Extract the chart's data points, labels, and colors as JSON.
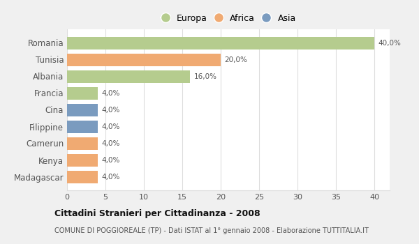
{
  "categories": [
    "Romania",
    "Tunisia",
    "Albania",
    "Francia",
    "Cina",
    "Filippine",
    "Camerun",
    "Kenya",
    "Madagascar"
  ],
  "values": [
    40.0,
    20.0,
    16.0,
    4.0,
    4.0,
    4.0,
    4.0,
    4.0,
    4.0
  ],
  "labels": [
    "40,0%",
    "20,0%",
    "16,0%",
    "4,0%",
    "4,0%",
    "4,0%",
    "4,0%",
    "4,0%",
    "4,0%"
  ],
  "continents": [
    "Europa",
    "Africa",
    "Europa",
    "Europa",
    "Asia",
    "Asia",
    "Africa",
    "Africa",
    "Africa"
  ],
  "colors": {
    "Europa": "#b5cc8e",
    "Africa": "#f0aa72",
    "Asia": "#7a9bbf"
  },
  "legend_labels": [
    "Europa",
    "Africa",
    "Asia"
  ],
  "legend_colors": [
    "#b5cc8e",
    "#f0aa72",
    "#7a9bbf"
  ],
  "xlim": [
    0,
    42
  ],
  "xticks": [
    0,
    5,
    10,
    15,
    20,
    25,
    30,
    35,
    40
  ],
  "title_bold": "Cittadini Stranieri per Cittadinanza - 2008",
  "subtitle": "COMUNE DI POGGIOREALE (TP) - Dati ISTAT al 1° gennaio 2008 - Elaborazione TUTTITALIA.IT",
  "fig_bg_color": "#f0f0f0",
  "plot_bg_color": "#ffffff",
  "grid_color": "#dddddd"
}
